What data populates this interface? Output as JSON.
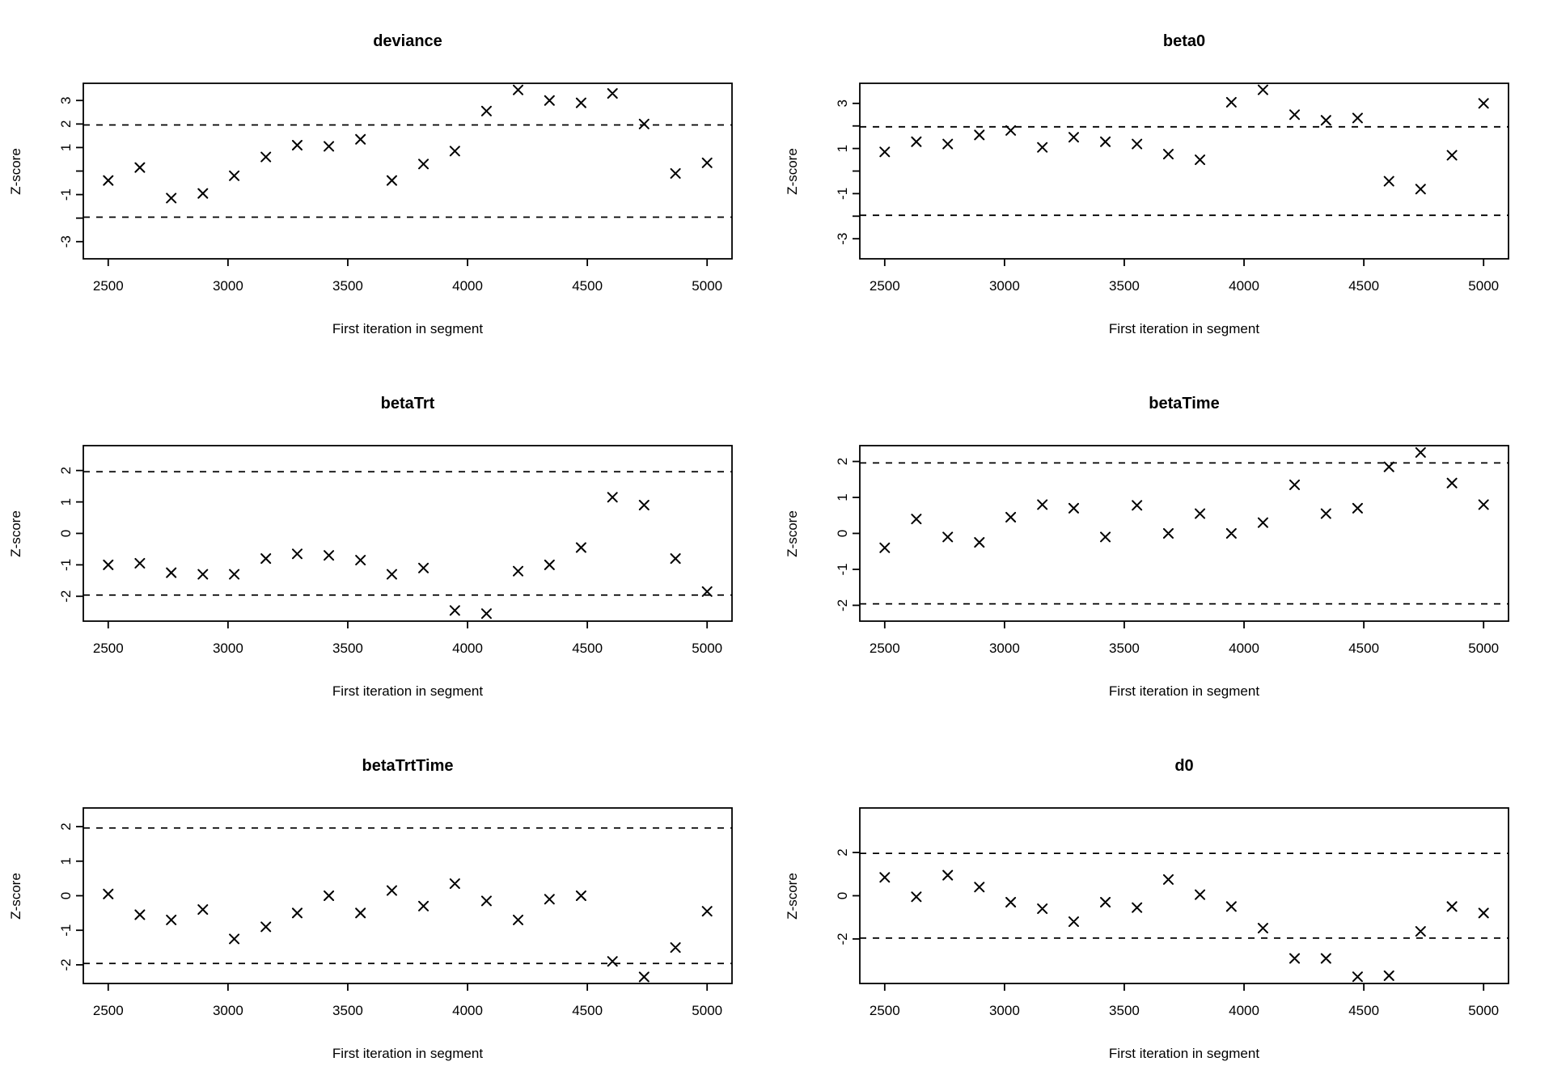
{
  "figure": {
    "background": "#ffffff",
    "ink_color": "#000000",
    "xlabel": "First iteration in segment",
    "ylabel": "Z-score",
    "panel_titles": [
      "deviance",
      "beta0",
      "betaTrt",
      "betaTime",
      "betaTrtTime",
      "d0"
    ]
  },
  "chart_data": [
    {
      "type": "scatter",
      "title": "deviance",
      "xlabel": "First iteration in segment",
      "ylabel": "Z-score",
      "marker": "x",
      "grid": false,
      "legend": null,
      "x": [
        2500,
        2632,
        2763,
        2895,
        3026,
        3158,
        3289,
        3421,
        3553,
        3684,
        3816,
        3947,
        4079,
        4211,
        4342,
        4474,
        4605,
        4737,
        4868,
        5000
      ],
      "z": [
        -0.4,
        0.15,
        -1.15,
        -0.95,
        -0.2,
        0.6,
        1.1,
        1.05,
        1.35,
        -0.4,
        0.3,
        0.85,
        2.55,
        3.45,
        3.0,
        2.9,
        3.3,
        2.0,
        -0.1,
        0.35
      ],
      "xlim": [
        2396,
        5104
      ],
      "ylim": [
        -3.73,
        3.73
      ],
      "xticks": [
        2500,
        3000,
        3500,
        4000,
        4500,
        5000
      ],
      "yticks": [
        -3,
        -2,
        -1,
        0,
        1,
        2,
        3
      ],
      "ytick_labels": [
        "-3",
        "",
        "-1",
        "",
        "1",
        "2",
        "3"
      ],
      "threshold_lines": [
        -1.96,
        1.96
      ]
    },
    {
      "type": "scatter",
      "title": "beta0",
      "xlabel": "First iteration in segment",
      "ylabel": "Z-score",
      "marker": "x",
      "grid": false,
      "legend": null,
      "x": [
        2500,
        2632,
        2763,
        2895,
        3026,
        3158,
        3289,
        3421,
        3553,
        3684,
        3816,
        3947,
        4079,
        4211,
        4342,
        4474,
        4605,
        4737,
        4868,
        5000
      ],
      "z": [
        0.85,
        1.3,
        1.2,
        1.6,
        1.8,
        1.05,
        1.5,
        1.3,
        1.2,
        0.75,
        0.5,
        3.05,
        3.6,
        2.5,
        2.25,
        2.35,
        -0.45,
        -0.8,
        0.7,
        3.0
      ],
      "xlim": [
        2396,
        5104
      ],
      "ylim": [
        -3.89,
        3.89
      ],
      "xticks": [
        2500,
        3000,
        3500,
        4000,
        4500,
        5000
      ],
      "yticks": [
        -3,
        -2,
        -1,
        0,
        1,
        2,
        3
      ],
      "ytick_labels": [
        "-3",
        "",
        "-1",
        "",
        "1",
        "",
        "3"
      ],
      "threshold_lines": [
        -1.96,
        1.96
      ]
    },
    {
      "type": "scatter",
      "title": "betaTrt",
      "xlabel": "First iteration in segment",
      "ylabel": "Z-score",
      "marker": "x",
      "grid": false,
      "legend": null,
      "x": [
        2500,
        2632,
        2763,
        2895,
        3026,
        3158,
        3289,
        3421,
        3553,
        3684,
        3816,
        3947,
        4079,
        4211,
        4342,
        4474,
        4605,
        4737,
        4868,
        5000
      ],
      "z": [
        -1.0,
        -0.95,
        -1.25,
        -1.3,
        -1.3,
        -0.8,
        -0.65,
        -0.7,
        -0.85,
        -1.3,
        -1.1,
        -2.45,
        -2.55,
        -1.2,
        -1.0,
        -0.45,
        1.15,
        0.9,
        -0.8,
        -1.85
      ],
      "xlim": [
        2396,
        5104
      ],
      "ylim": [
        -2.79,
        2.79
      ],
      "xticks": [
        2500,
        3000,
        3500,
        4000,
        4500,
        5000
      ],
      "yticks": [
        -2,
        -1,
        0,
        1,
        2
      ],
      "ytick_labels": [
        "-2",
        "-1",
        "0",
        "1",
        "2"
      ],
      "threshold_lines": [
        -1.96,
        1.96
      ]
    },
    {
      "type": "scatter",
      "title": "betaTime",
      "xlabel": "First iteration in segment",
      "ylabel": "Z-score",
      "marker": "x",
      "grid": false,
      "legend": null,
      "x": [
        2500,
        2632,
        2763,
        2895,
        3026,
        3158,
        3289,
        3421,
        3553,
        3684,
        3816,
        3947,
        4079,
        4211,
        4342,
        4474,
        4605,
        4737,
        4868,
        5000
      ],
      "z": [
        -0.4,
        0.4,
        -0.1,
        -0.25,
        0.45,
        0.8,
        0.7,
        -0.1,
        0.78,
        0.0,
        0.55,
        0.0,
        0.3,
        1.35,
        0.55,
        0.7,
        1.85,
        2.25,
        1.4,
        0.8
      ],
      "xlim": [
        2396,
        5104
      ],
      "ylim": [
        -2.44,
        2.44
      ],
      "xticks": [
        2500,
        3000,
        3500,
        4000,
        4500,
        5000
      ],
      "yticks": [
        -2,
        -1,
        0,
        1,
        2
      ],
      "ytick_labels": [
        "-2",
        "-1",
        "0",
        "1",
        "2"
      ],
      "threshold_lines": [
        -1.96,
        1.96
      ]
    },
    {
      "type": "scatter",
      "title": "betaTrtTime",
      "xlabel": "First iteration in segment",
      "ylabel": "Z-score",
      "marker": "x",
      "grid": false,
      "legend": null,
      "x": [
        2500,
        2632,
        2763,
        2895,
        3026,
        3158,
        3289,
        3421,
        3553,
        3684,
        3816,
        3947,
        4079,
        4211,
        4342,
        4474,
        4605,
        4737,
        4868,
        5000
      ],
      "z": [
        0.05,
        -0.55,
        -0.7,
        -0.4,
        -1.25,
        -0.9,
        -0.5,
        0.0,
        -0.5,
        0.15,
        -0.3,
        0.35,
        -0.15,
        -0.7,
        -0.1,
        0.0,
        -1.9,
        -2.35,
        -1.5,
        -0.45
      ],
      "xlim": [
        2396,
        5104
      ],
      "ylim": [
        -2.54,
        2.54
      ],
      "xticks": [
        2500,
        3000,
        3500,
        4000,
        4500,
        5000
      ],
      "yticks": [
        -2,
        -1,
        0,
        1,
        2
      ],
      "ytick_labels": [
        "-2",
        "-1",
        "0",
        "1",
        "2"
      ],
      "threshold_lines": [
        -1.96,
        1.96
      ]
    },
    {
      "type": "scatter",
      "title": "d0",
      "xlabel": "First iteration in segment",
      "ylabel": "Z-score",
      "marker": "x",
      "grid": false,
      "legend": null,
      "x": [
        2500,
        2632,
        2763,
        2895,
        3026,
        3158,
        3289,
        3421,
        3553,
        3684,
        3816,
        3947,
        4079,
        4211,
        4342,
        4474,
        4605,
        4737,
        4868,
        5000
      ],
      "z": [
        0.85,
        -0.05,
        0.95,
        0.4,
        -0.3,
        -0.6,
        -1.2,
        -0.3,
        -0.55,
        0.75,
        0.05,
        -0.5,
        -1.5,
        -2.9,
        -2.9,
        -3.75,
        -3.7,
        -1.65,
        -0.5,
        -0.8
      ],
      "xlim": [
        2396,
        5104
      ],
      "ylim": [
        -4.06,
        4.06
      ],
      "xticks": [
        2500,
        3000,
        3500,
        4000,
        4500,
        5000
      ],
      "yticks": [
        -2,
        0,
        2
      ],
      "ytick_labels": [
        "-2",
        "0",
        "2"
      ],
      "threshold_lines": [
        -1.96,
        1.96
      ]
    }
  ]
}
